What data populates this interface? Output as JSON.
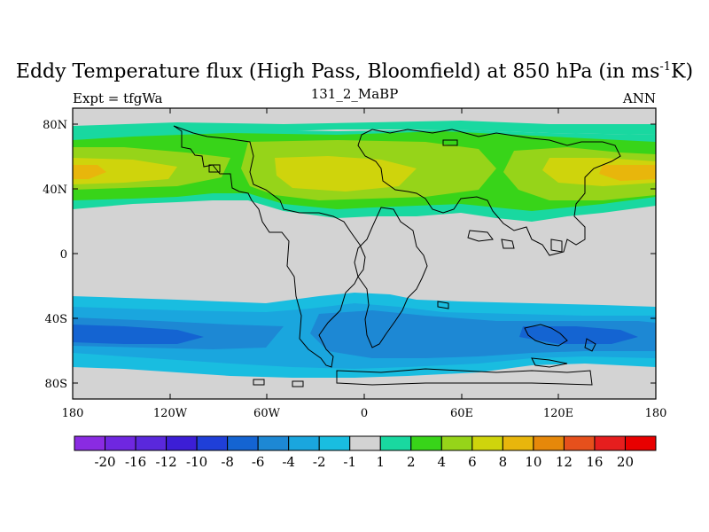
{
  "title": {
    "main": "Eddy Temperature flux (High Pass, Bloomfield) at 850 hPa (in ms",
    "sup": "-1",
    "end": "K)"
  },
  "subtitles": {
    "left": "Expt = tfgWa",
    "center": "131_2_MaBP",
    "right": "ANN"
  },
  "map": {
    "y_ticks": [
      "80N",
      "40N",
      "0",
      "40S",
      "80S"
    ],
    "x_ticks": [
      "180",
      "120W",
      "60W",
      "0",
      "60E",
      "120E",
      "180"
    ],
    "lat_range": [
      -90,
      90
    ],
    "lon_range": [
      -180,
      180
    ],
    "background_color": "#d3d3d3"
  },
  "colorbar": {
    "labels": [
      "-20",
      "-16",
      "-12",
      "-10",
      "-8",
      "-6",
      "-4",
      "-2",
      "-1",
      "1",
      "2",
      "4",
      "6",
      "8",
      "10",
      "12",
      "16",
      "20"
    ],
    "colors": [
      "#8a2be2",
      "#6f27e0",
      "#5a28dc",
      "#3c1ed6",
      "#1f3fd8",
      "#1464d2",
      "#1d88d4",
      "#1aa6de",
      "#19bde0",
      "#d3d3d3",
      "#19d8a0",
      "#38d419",
      "#96d419",
      "#cfd40c",
      "#e8b60c",
      "#e6880a",
      "#e6501c",
      "#e61e1e",
      "#e80000"
    ]
  }
}
